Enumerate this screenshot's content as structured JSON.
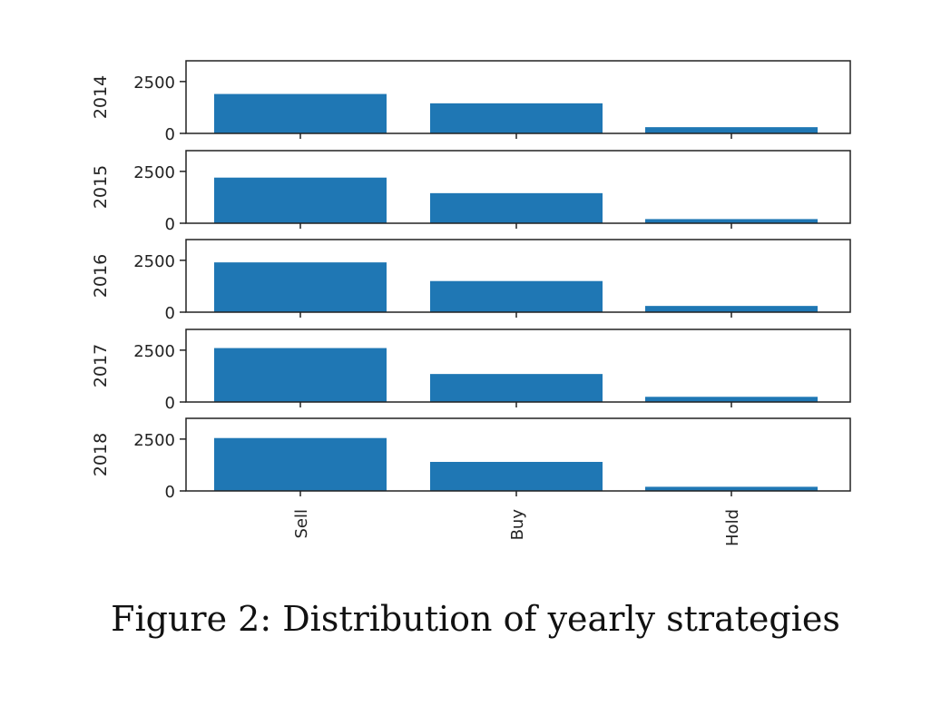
{
  "caption": "Figure 2: Distribution of yearly strategies",
  "colors": {
    "bar": "#1f77b4",
    "axis": "#222222"
  },
  "chart_data": {
    "type": "bar",
    "layout": "stacked-subplots",
    "categories": [
      "Sell",
      "Buy",
      "Hold"
    ],
    "ylim": [
      0,
      3500
    ],
    "yticks": [
      0,
      2500
    ],
    "ytick_labels": [
      "0",
      "2500"
    ],
    "series": [
      {
        "name": "2014",
        "values": [
          1900,
          1450,
          300
        ]
      },
      {
        "name": "2015",
        "values": [
          2200,
          1450,
          200
        ]
      },
      {
        "name": "2016",
        "values": [
          2400,
          1500,
          300
        ]
      },
      {
        "name": "2017",
        "values": [
          2600,
          1350,
          250
        ]
      },
      {
        "name": "2018",
        "values": [
          2550,
          1400,
          200
        ]
      }
    ]
  }
}
